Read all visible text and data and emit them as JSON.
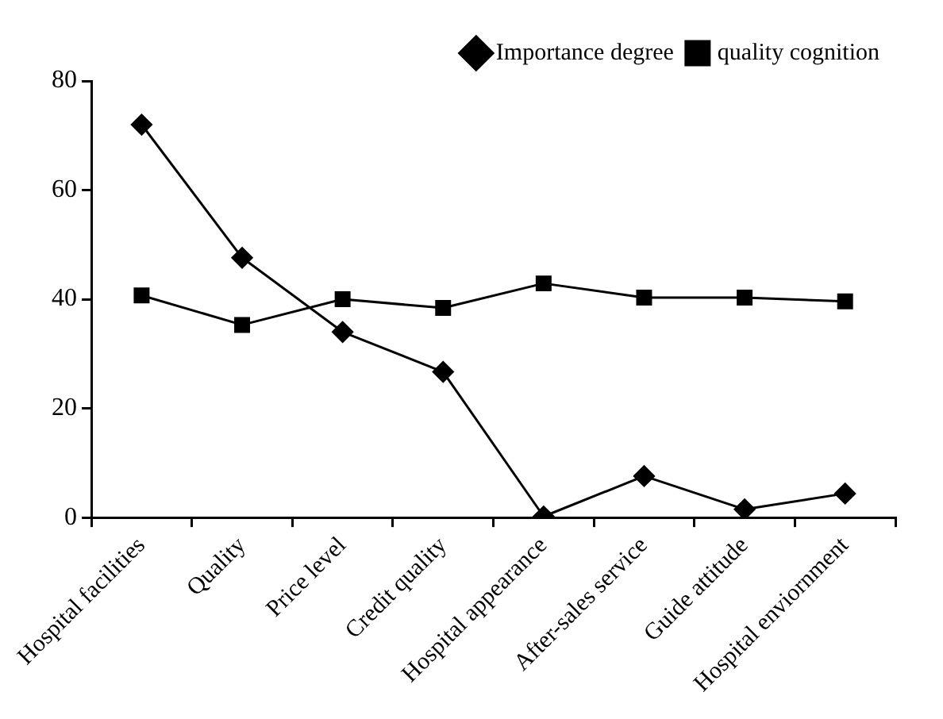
{
  "chart_data": {
    "type": "line",
    "categories": [
      "Hospital facilities",
      "Quality",
      "Price level",
      "Credit quality",
      "Hospital appearance",
      "After-sales service",
      "Guide attitude",
      "Hospital enviornment"
    ],
    "series": [
      {
        "name": "Importance degree",
        "color": "#000000",
        "marker": "diamond",
        "values": [
          72,
          47.6,
          34,
          26.7,
          0.2,
          7.6,
          1.5,
          4.4
        ]
      },
      {
        "name": "quality cognition",
        "color": "#000000",
        "marker": "square",
        "values": [
          40.7,
          35.3,
          40,
          38.4,
          42.9,
          40.3,
          40.3,
          39.6
        ]
      }
    ],
    "ylim": [
      0,
      80
    ],
    "yticks": [
      0,
      20,
      40,
      60,
      80
    ],
    "grid": false,
    "legend": "top right",
    "line_style": "solid"
  }
}
